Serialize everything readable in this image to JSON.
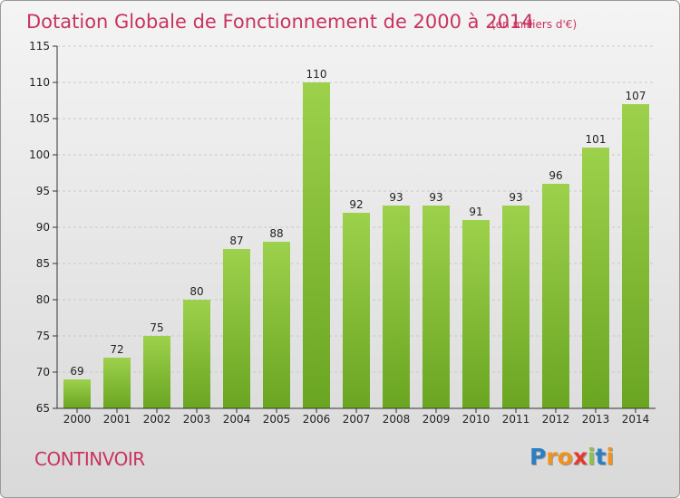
{
  "chart_data": {
    "type": "bar",
    "title": "Dotation Globale de Fonctionnement de 2000 à 2014",
    "unit_note": "(en milliers d'€)",
    "categories": [
      "2000",
      "2001",
      "2002",
      "2003",
      "2004",
      "2005",
      "2006",
      "2007",
      "2008",
      "2009",
      "2010",
      "2011",
      "2012",
      "2013",
      "2014"
    ],
    "values": [
      69,
      72,
      75,
      80,
      87,
      88,
      110,
      92,
      93,
      93,
      91,
      93,
      96,
      101,
      107
    ],
    "ylim": [
      65,
      115
    ],
    "yticks": [
      65,
      70,
      75,
      80,
      85,
      90,
      95,
      100,
      105,
      110,
      115
    ],
    "grid": "horizontal dashed",
    "bar_color": "#7fbf2e",
    "bar_color_top": "#9dd14c"
  },
  "commune": "CONTINVOIR",
  "logo": {
    "letters": [
      "P",
      "r",
      "o",
      "x",
      "i",
      "t",
      "i"
    ],
    "colors": [
      "#2d7fc1",
      "#f0921e",
      "#f0921e",
      "#e23b2e",
      "#8bc34a",
      "#2d7fc1",
      "#f0921e"
    ]
  },
  "colors": {
    "accent": "#c8345f",
    "axis": "#333333",
    "grid": "#c8c8c8"
  }
}
